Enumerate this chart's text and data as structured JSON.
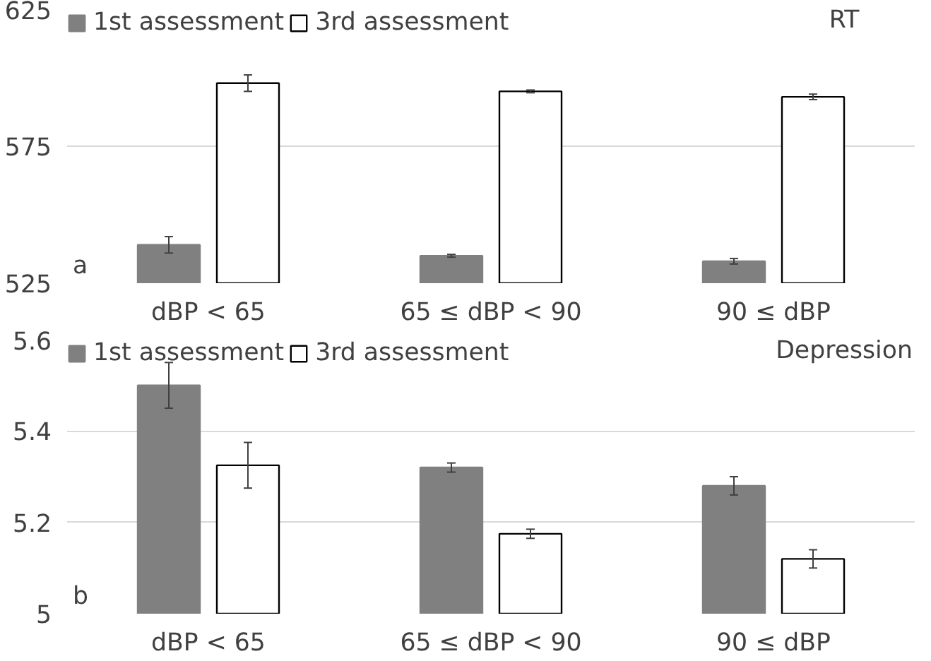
{
  "chart_data": [
    {
      "type": "bar",
      "title": "RT",
      "categories": [
        "dBP < 65",
        "65 ≤ dBP < 90",
        "90 ≤ dBP"
      ],
      "ylim": [
        525,
        625
      ],
      "yticks": [
        525,
        575,
        625
      ],
      "grid": "y",
      "legend": "top left",
      "annotations": [
        "a"
      ],
      "series": [
        {
          "name": "1st assessment",
          "color": "#808080",
          "values": [
            539,
            535,
            533
          ],
          "errors": [
            3,
            0.5,
            1
          ]
        },
        {
          "name": "3rd assessment",
          "color": "#ffffff",
          "values": [
            598,
            595,
            593
          ],
          "errors": [
            3,
            0.5,
            1
          ]
        }
      ]
    },
    {
      "type": "bar",
      "title": "Depression",
      "categories": [
        "dBP < 65",
        "65 ≤ dBP < 90",
        "90 ≤ dBP"
      ],
      "ylim": [
        5,
        5.6
      ],
      "yticks": [
        5,
        5.2,
        5.4,
        5.6
      ],
      "grid": "y",
      "legend": "top left",
      "annotations": [
        "b"
      ],
      "series": [
        {
          "name": "1st assessment",
          "color": "#808080",
          "values": [
            5.5,
            5.32,
            5.28
          ],
          "errors": [
            0.05,
            0.01,
            0.02
          ]
        },
        {
          "name": "3rd assessment",
          "color": "#ffffff",
          "values": [
            5.325,
            5.175,
            5.12
          ],
          "errors": [
            0.05,
            0.01,
            0.02
          ]
        }
      ]
    }
  ]
}
